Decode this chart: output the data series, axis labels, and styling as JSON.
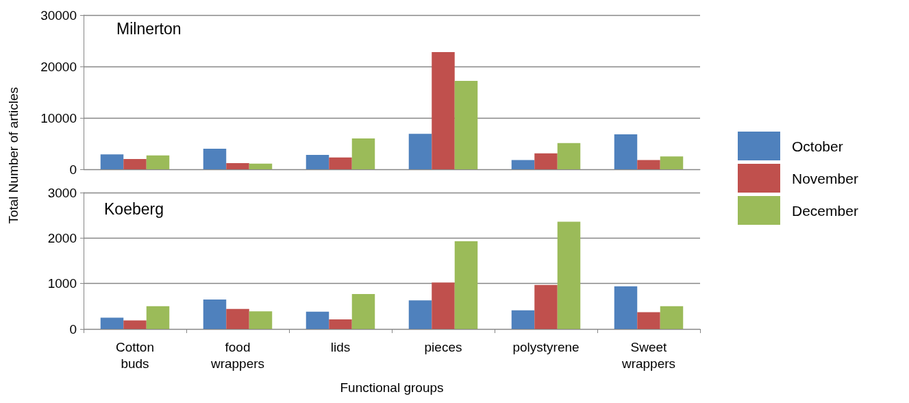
{
  "chart_data": [
    {
      "type": "bar",
      "title": "Milnerton",
      "ylabel": "Total Number of articles",
      "categories": [
        null,
        null,
        null,
        null,
        null,
        null
      ],
      "series": [
        {
          "name": "October",
          "color": "#4f81bd",
          "values": [
            2900,
            4000,
            2800,
            6900,
            1800,
            6800
          ]
        },
        {
          "name": "November",
          "color": "#c0504d",
          "values": [
            2000,
            1200,
            2300,
            22800,
            3100,
            1800
          ]
        },
        {
          "name": "December",
          "color": "#9bbb59",
          "values": [
            2700,
            1100,
            6000,
            17200,
            5100,
            2500
          ]
        }
      ],
      "ylim": [
        0,
        30000
      ],
      "yticks": [
        0,
        10000,
        20000,
        30000
      ],
      "grid": "y",
      "legend": "right",
      "tick_labels": "y"
    },
    {
      "type": "bar",
      "title": "Koeberg",
      "xlabel": "Functional groups",
      "categories": [
        "Cotton buds",
        "food wrappers",
        "lids",
        "pieces",
        "polystyrene",
        "Sweet wrappers"
      ],
      "series": [
        {
          "color": "#4f81bd",
          "values": [
            250,
            650,
            380,
            630,
            410,
            940
          ]
        },
        {
          "color": "#c0504d",
          "values": [
            190,
            440,
            210,
            1020,
            970,
            370
          ]
        },
        {
          "color": "#9bbb59",
          "values": [
            500,
            390,
            770,
            1930,
            2360,
            500
          ]
        }
      ],
      "ylim": [
        0,
        3000
      ],
      "yticks": [
        0,
        1000,
        2000,
        3000
      ],
      "grid": "y"
    }
  ]
}
